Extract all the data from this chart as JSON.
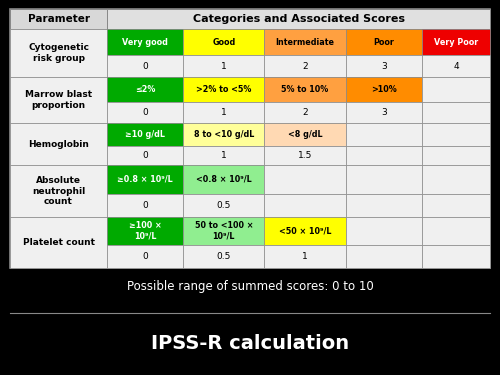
{
  "bg_color": "#000000",
  "title_text": "IPSS-R calculation",
  "subtitle_text": "Possible range of summed scores: 0 to 10",
  "col_header": "Categories and Associated Scores",
  "param_header": "Parameter",
  "rows": [
    {
      "param": "Cytogenetic\nrisk group",
      "cells": [
        {
          "label": "Very good",
          "color": "#00aa00",
          "text_color": "#ffffff",
          "score": "0"
        },
        {
          "label": "Good",
          "color": "#ffff00",
          "text_color": "#000000",
          "score": "1"
        },
        {
          "label": "Intermediate",
          "color": "#ffa040",
          "text_color": "#000000",
          "score": "2"
        },
        {
          "label": "Poor",
          "color": "#ff8c00",
          "text_color": "#000000",
          "score": "3"
        },
        {
          "label": "Very Poor",
          "color": "#ee0000",
          "text_color": "#ffffff",
          "score": "4"
        }
      ]
    },
    {
      "param": "Marrow blast\nproportion",
      "cells": [
        {
          "label": "≤2%",
          "color": "#00aa00",
          "text_color": "#ffffff",
          "score": "0"
        },
        {
          "label": ">2% to <5%",
          "color": "#ffff00",
          "text_color": "#000000",
          "score": "1"
        },
        {
          "label": "5% to 10%",
          "color": "#ffa040",
          "text_color": "#000000",
          "score": "2"
        },
        {
          "label": ">10%",
          "color": "#ff8c00",
          "text_color": "#000000",
          "score": "3"
        },
        {
          "label": "",
          "color": null,
          "text_color": "#000000",
          "score": ""
        }
      ]
    },
    {
      "param": "Hemoglobin",
      "cells": [
        {
          "label": "≥10 g/dL",
          "color": "#00aa00",
          "text_color": "#ffffff",
          "score": "0"
        },
        {
          "label": "8 to <10 g/dL",
          "color": "#ffff99",
          "text_color": "#000000",
          "score": "1"
        },
        {
          "label": "<8 g/dL",
          "color": "#ffd9b3",
          "text_color": "#000000",
          "score": "1.5"
        },
        {
          "label": "",
          "color": null,
          "text_color": "#000000",
          "score": ""
        },
        {
          "label": "",
          "color": null,
          "text_color": "#000000",
          "score": ""
        }
      ]
    },
    {
      "param": "Absolute\nneutrophil\ncount",
      "cells": [
        {
          "label": "≥0.8 × 10⁹/L",
          "color": "#00aa00",
          "text_color": "#ffffff",
          "score": "0"
        },
        {
          "label": "<0.8 × 10⁹/L",
          "color": "#90ee90",
          "text_color": "#000000",
          "score": "0.5"
        },
        {
          "label": "",
          "color": null,
          "text_color": "#000000",
          "score": ""
        },
        {
          "label": "",
          "color": null,
          "text_color": "#000000",
          "score": ""
        },
        {
          "label": "",
          "color": null,
          "text_color": "#000000",
          "score": ""
        }
      ]
    },
    {
      "param": "Platelet count",
      "cells": [
        {
          "label": "≥100 ×\n10⁹/L",
          "color": "#00aa00",
          "text_color": "#ffffff",
          "score": "0"
        },
        {
          "label": "50 to <100 ×\n10⁹/L",
          "color": "#90ee90",
          "text_color": "#000000",
          "score": "0.5"
        },
        {
          "label": "<50 × 10⁹/L",
          "color": "#ffff00",
          "text_color": "#000000",
          "score": "1"
        },
        {
          "label": "",
          "color": null,
          "text_color": "#000000",
          "score": ""
        },
        {
          "label": "",
          "color": null,
          "text_color": "#000000",
          "score": ""
        }
      ]
    }
  ]
}
